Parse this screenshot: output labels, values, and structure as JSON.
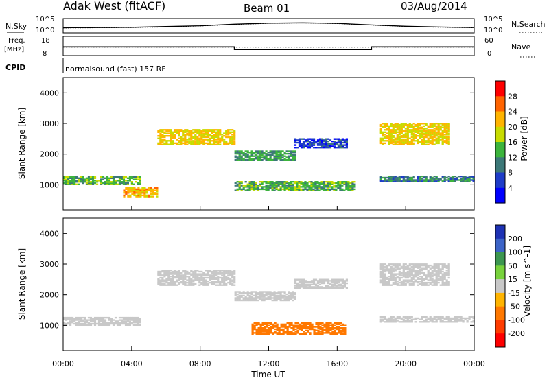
{
  "header": {
    "station": "Adak West (fitACF)",
    "beam": "Beam 01",
    "date": "03/Aug/2014"
  },
  "strip_labels": {
    "nsky": "N.Sky",
    "nsky_hi": "10^5",
    "nsky_lo": "10^0",
    "nsearch": "N.Search",
    "nsearch_hi": "10^5",
    "nsearch_lo": "10^0",
    "freq": "Freq.",
    "freq_unit": "[MHz]",
    "freq_hi": "18",
    "freq_lo": "8",
    "nave": "Nave",
    "nave_hi": "60",
    "nave_lo": "0",
    "cpid": "CPID",
    "cpid_text": "normalsound (fast) 157 RF"
  },
  "chart_data": [
    {
      "type": "line",
      "panel": "counts",
      "x_hours": [
        0,
        2,
        4,
        6,
        8,
        10,
        12,
        14,
        16,
        18,
        20,
        22,
        24
      ],
      "series": [
        {
          "name": "N.Sky",
          "values": [
            50,
            60,
            80,
            150,
            300,
            1200,
            3000,
            4000,
            2500,
            600,
            200,
            100,
            60
          ]
        },
        {
          "name": "N.Search",
          "values": [
            40,
            50,
            60,
            100,
            250,
            900,
            2500,
            3500,
            2000,
            500,
            150,
            80,
            50
          ]
        }
      ],
      "ylim": [
        1,
        100000
      ],
      "log_scale": true
    },
    {
      "type": "line",
      "panel": "frequency",
      "series": [
        {
          "name": "Freq.",
          "unit": "MHz",
          "segments": [
            [
              0,
              10,
              12.5
            ],
            [
              10,
              18,
              11
            ],
            [
              18,
              24,
              12.5
            ]
          ]
        },
        {
          "name": "Nave",
          "segments": [
            [
              0,
              10,
              15
            ],
            [
              10,
              18,
              15
            ],
            [
              18,
              24,
              15
            ]
          ]
        }
      ],
      "ylim": [
        8,
        18
      ]
    },
    {
      "type": "heatmap",
      "panel": "power",
      "xlabel": "",
      "ylabel": "Slant Range [km]",
      "xlim_hours": [
        0,
        24
      ],
      "ylim_km": [
        180,
        4500
      ],
      "yticks": [
        1000,
        2000,
        3000,
        4000
      ],
      "colorbar": {
        "label": "Power [dB]",
        "ticks": [
          4,
          8,
          12,
          16,
          20,
          24,
          28
        ],
        "range": [
          0,
          30
        ],
        "colors": [
          "#0000ff",
          "#1e3cc8",
          "#3c7878",
          "#3cb43c",
          "#c8dc00",
          "#ffb400",
          "#ff6400",
          "#ff0000"
        ]
      },
      "bands": [
        {
          "t0": 0,
          "t1": 4.5,
          "r0": 1000,
          "r1": 1250,
          "v": 14
        },
        {
          "t0": 3.5,
          "t1": 5.5,
          "r0": 600,
          "r1": 900,
          "v": 22
        },
        {
          "t0": 5.5,
          "t1": 10,
          "r0": 2300,
          "r1": 2800,
          "v": 20
        },
        {
          "t0": 10,
          "t1": 13.5,
          "r0": 1800,
          "r1": 2100,
          "v": 12
        },
        {
          "t0": 10,
          "t1": 17,
          "r0": 800,
          "r1": 1100,
          "v": 14
        },
        {
          "t0": 13.5,
          "t1": 16.5,
          "r0": 2200,
          "r1": 2500,
          "v": 6
        },
        {
          "t0": 18.5,
          "t1": 22.5,
          "r0": 2300,
          "r1": 3000,
          "v": 20
        },
        {
          "t0": 18.5,
          "t1": 24,
          "r0": 1100,
          "r1": 1300,
          "v": 10
        }
      ]
    },
    {
      "type": "heatmap",
      "panel": "velocity",
      "xlabel": "Time UT",
      "ylabel": "Slant Range [km]",
      "xlim_hours": [
        0,
        24
      ],
      "ylim_km": [
        180,
        4500
      ],
      "yticks": [
        1000,
        2000,
        3000,
        4000
      ],
      "xticks": [
        "00:00",
        "04:00",
        "08:00",
        "12:00",
        "16:00",
        "20:00",
        "00:00"
      ],
      "colorbar": {
        "label": "Velocity [m s^-1]",
        "ticks": [
          200,
          100,
          50,
          15,
          -15,
          -50,
          -100,
          -200
        ],
        "colors": [
          "#1e32b4",
          "#3c64c8",
          "#3c9650",
          "#78d23c",
          "#c8c8c8",
          "#ffb400",
          "#ff7800",
          "#ff3c00",
          "#ff0000"
        ]
      },
      "bands": [
        {
          "t0": 0,
          "t1": 4.5,
          "r0": 1000,
          "r1": 1250,
          "v": 0
        },
        {
          "t0": 5.5,
          "t1": 10,
          "r0": 2300,
          "r1": 2800,
          "v": 0
        },
        {
          "t0": 10,
          "t1": 13.5,
          "r0": 1800,
          "r1": 2100,
          "v": 0
        },
        {
          "t0": 11,
          "t1": 16.5,
          "r0": 700,
          "r1": 1100,
          "v": -60
        },
        {
          "t0": 13.5,
          "t1": 16.5,
          "r0": 2200,
          "r1": 2500,
          "v": 10
        },
        {
          "t0": 18.5,
          "t1": 22.5,
          "r0": 2300,
          "r1": 3000,
          "v": 0
        },
        {
          "t0": 18.5,
          "t1": 24,
          "r0": 1100,
          "r1": 1300,
          "v": 0
        }
      ]
    }
  ]
}
